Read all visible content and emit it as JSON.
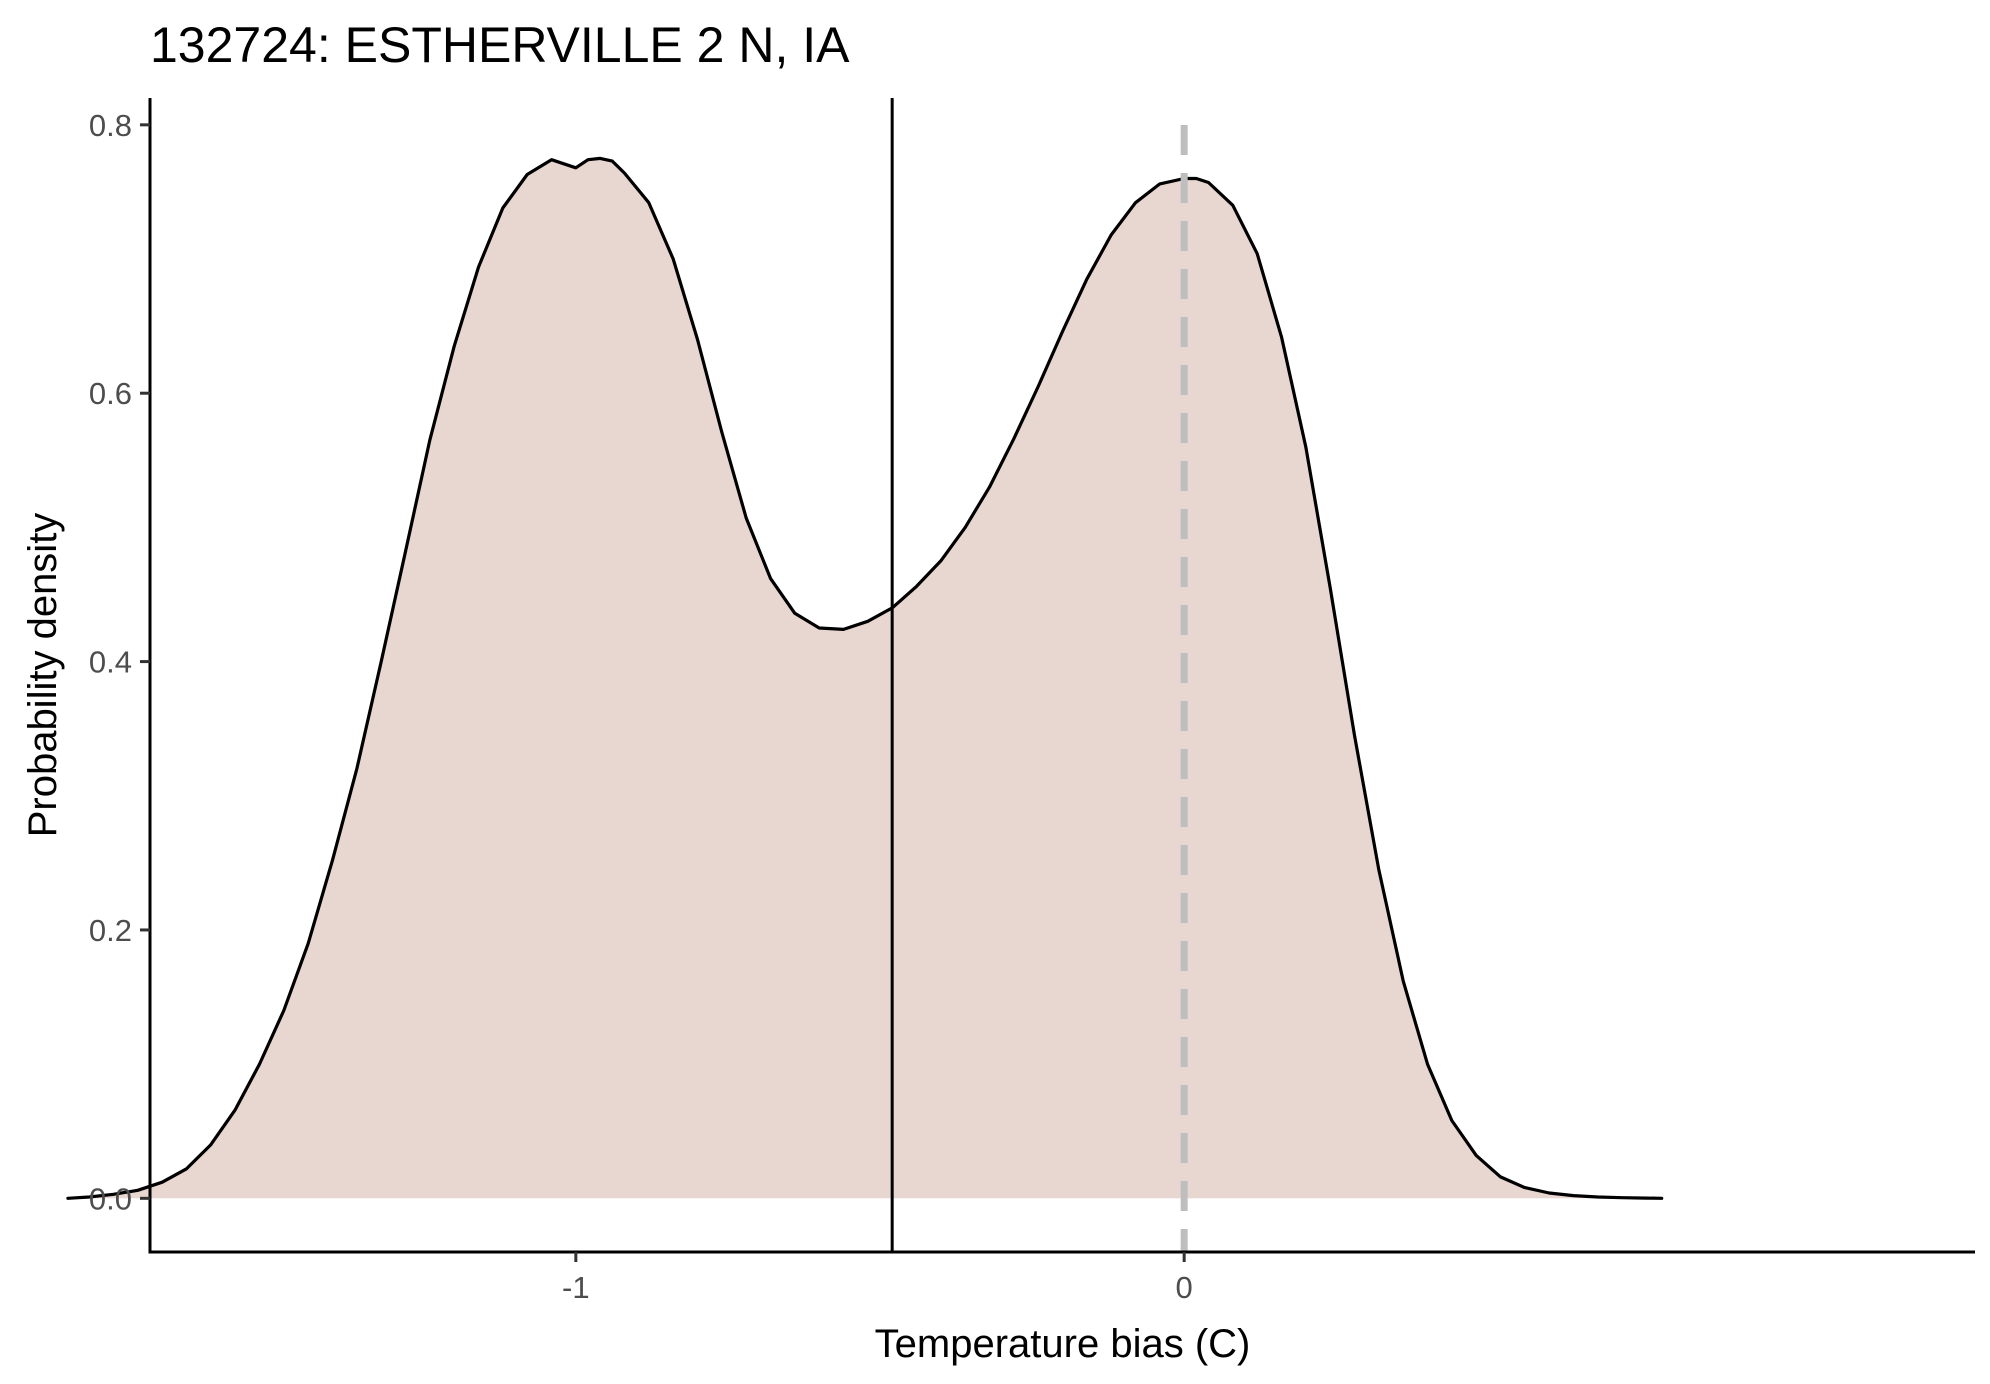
{
  "chart_data": {
    "type": "area",
    "title": "132724: ESTHERVILLE 2 N, IA",
    "xlabel": "Temperature bias (C)",
    "ylabel": "Probability density",
    "xlim": [
      -1.7,
      1.3
    ],
    "ylim": [
      -0.04,
      0.82
    ],
    "x_ticks": [
      {
        "value": -1,
        "label": "-1"
      },
      {
        "value": 0,
        "label": "0"
      }
    ],
    "y_ticks": [
      {
        "value": 0.0,
        "label": "0.0"
      },
      {
        "value": 0.2,
        "label": "0.2"
      },
      {
        "value": 0.4,
        "label": "0.4"
      },
      {
        "value": 0.6,
        "label": "0.6"
      },
      {
        "value": 0.8,
        "label": "0.8"
      }
    ],
    "grid": false,
    "legend": "none",
    "fill_color": "#e8d6d0",
    "line_color": "#000000",
    "series": [
      {
        "x": [
          -1.835,
          -1.8,
          -1.76,
          -1.72,
          -1.68,
          -1.64,
          -1.6,
          -1.56,
          -1.52,
          -1.48,
          -1.44,
          -1.4,
          -1.36,
          -1.32,
          -1.28,
          -1.24,
          -1.2,
          -1.16,
          -1.12,
          -1.08,
          -1.04,
          -1.0,
          -0.98,
          -0.96,
          -0.94,
          -0.92,
          -0.88,
          -0.84,
          -0.8,
          -0.76,
          -0.72,
          -0.68,
          -0.64,
          -0.6,
          -0.56,
          -0.52,
          -0.48,
          -0.44,
          -0.4,
          -0.36,
          -0.32,
          -0.28,
          -0.24,
          -0.2,
          -0.16,
          -0.12,
          -0.08,
          -0.04,
          0.0,
          0.02,
          0.04,
          0.08,
          0.12,
          0.16,
          0.2,
          0.24,
          0.28,
          0.32,
          0.36,
          0.4,
          0.44,
          0.48,
          0.52,
          0.56,
          0.6,
          0.64,
          0.68,
          0.72,
          0.76,
          0.785
        ],
        "y": [
          0.0,
          0.001,
          0.003,
          0.006,
          0.012,
          0.022,
          0.04,
          0.066,
          0.1,
          0.14,
          0.19,
          0.252,
          0.32,
          0.4,
          0.482,
          0.565,
          0.635,
          0.694,
          0.738,
          0.763,
          0.774,
          0.768,
          0.774,
          0.775,
          0.773,
          0.764,
          0.742,
          0.7,
          0.64,
          0.571,
          0.507,
          0.462,
          0.436,
          0.425,
          0.424,
          0.43,
          0.44,
          0.456,
          0.475,
          0.5,
          0.53,
          0.566,
          0.605,
          0.646,
          0.685,
          0.718,
          0.742,
          0.756,
          0.76,
          0.76,
          0.757,
          0.74,
          0.704,
          0.642,
          0.56,
          0.455,
          0.345,
          0.245,
          0.162,
          0.1,
          0.058,
          0.032,
          0.016,
          0.008,
          0.004,
          0.002,
          0.001,
          0.0005,
          0.0002,
          0.0
        ]
      }
    ],
    "reference_lines": [
      {
        "axis": "x",
        "value": -0.48,
        "style": "solid",
        "color": "#000000"
      },
      {
        "axis": "x",
        "value": 0.0,
        "style": "dashed",
        "color": "#bebebe"
      }
    ]
  }
}
